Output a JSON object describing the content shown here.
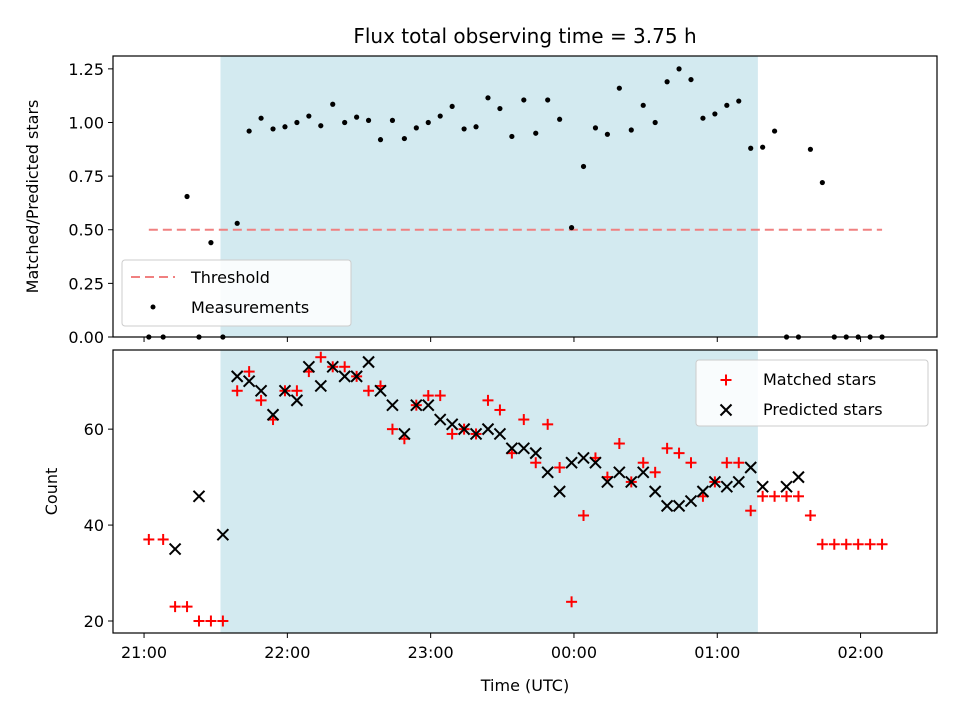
{
  "chart_data": [
    {
      "type": "scatter",
      "title": "Flux total observing time = 3.75 h",
      "ylabel": "Matched/Predicted stars",
      "xlabel": "",
      "ylim": [
        0,
        1.31
      ],
      "yticks": [
        0.0,
        0.25,
        0.5,
        0.75,
        1.0,
        1.25
      ],
      "ytick_labels": [
        "0.00",
        "0.25",
        "0.50",
        "0.75",
        "1.00",
        "1.25"
      ],
      "xticks_minutes": [
        0,
        60,
        120,
        180,
        240,
        300
      ],
      "xlim_minutes": [
        -13,
        332
      ],
      "shaded_span_minutes": [
        32,
        257
      ],
      "shaded_color": "#d3eaf0",
      "threshold": {
        "name": "Threshold",
        "value": 0.5,
        "x_range_minutes": [
          2,
          309
        ],
        "color": "#f08080"
      },
      "series": [
        {
          "name": "Measurements",
          "color": "#000000",
          "x": [
            2,
            8,
            18,
            23,
            28,
            33,
            39,
            44,
            49,
            54,
            59,
            64,
            69,
            74,
            79,
            84,
            89,
            94,
            99,
            104,
            109,
            114,
            119,
            124,
            129,
            134,
            139,
            144,
            149,
            154,
            159,
            164,
            169,
            174,
            179,
            184,
            189,
            194,
            199,
            204,
            209,
            214,
            219,
            224,
            229,
            234,
            239,
            244,
            249,
            254,
            259,
            264,
            269,
            274,
            279,
            284,
            289,
            294,
            299,
            304,
            309
          ],
          "y": [
            0,
            0,
            0.655,
            0,
            0.44,
            0,
            0.53,
            0.96,
            1.02,
            0.97,
            0.98,
            1.0,
            1.03,
            0.985,
            1.085,
            1.0,
            1.025,
            1.01,
            0.92,
            1.01,
            0.925,
            0.975,
            1.0,
            1.03,
            1.075,
            0.97,
            0.98,
            1.115,
            1.065,
            0.935,
            1.105,
            0.95,
            1.105,
            1.015,
            0.51,
            0.795,
            0.975,
            0.945,
            1.16,
            0.965,
            1.08,
            1.0,
            1.19,
            1.25,
            1.2,
            1.02,
            1.04,
            1.08,
            1.1,
            0.88,
            0.885,
            0.96,
            0,
            0,
            0.875,
            0.72,
            0,
            0,
            0,
            0,
            0
          ]
        }
      ],
      "legend": {
        "placement": "lower-left",
        "entries": [
          "Threshold",
          "Measurements"
        ]
      }
    },
    {
      "type": "scatter",
      "title": "",
      "ylabel": "Count",
      "xlabel": "Time (UTC)",
      "ylim": [
        17.5,
        76.5
      ],
      "yticks": [
        20,
        40,
        60
      ],
      "ytick_labels": [
        "20",
        "40",
        "60"
      ],
      "xticks_minutes": [
        0,
        60,
        120,
        180,
        240,
        300
      ],
      "xtick_labels": [
        "21:00",
        "22:00",
        "23:00",
        "00:00",
        "01:00",
        "02:00"
      ],
      "xlim_minutes": [
        -13,
        332
      ],
      "shaded_span_minutes": [
        32,
        257
      ],
      "shaded_color": "#d3eaf0",
      "series": [
        {
          "name": "Matched stars",
          "marker": "plus",
          "color": "#ff0000",
          "x": [
            2,
            8,
            13,
            18,
            23,
            28,
            33,
            39,
            44,
            49,
            54,
            59,
            64,
            69,
            74,
            79,
            84,
            89,
            94,
            99,
            104,
            109,
            114,
            119,
            124,
            129,
            134,
            139,
            144,
            149,
            154,
            159,
            164,
            169,
            174,
            179,
            184,
            189,
            194,
            199,
            204,
            209,
            214,
            219,
            224,
            229,
            234,
            239,
            244,
            249,
            254,
            259,
            264,
            269,
            274,
            279,
            284,
            289,
            294,
            299,
            304,
            309
          ],
          "y": [
            37,
            37,
            23,
            23,
            20,
            20,
            20,
            68,
            72,
            66,
            62,
            68,
            68,
            72,
            75,
            73,
            73,
            71,
            68,
            69,
            60,
            58,
            65,
            67,
            67,
            59,
            60,
            59,
            66,
            64,
            55,
            62,
            53,
            61,
            52,
            24,
            42,
            54,
            50,
            57,
            49,
            53,
            51,
            56,
            55,
            53,
            46,
            49,
            53,
            53,
            43,
            46,
            46,
            46,
            46,
            42,
            36,
            36,
            36,
            36,
            36,
            36
          ]
        },
        {
          "name": "Predicted stars",
          "marker": "x",
          "color": "#000000",
          "x": [
            13,
            23,
            33,
            39,
            44,
            49,
            54,
            59,
            64,
            69,
            74,
            79,
            84,
            89,
            94,
            99,
            104,
            109,
            114,
            119,
            124,
            129,
            134,
            139,
            144,
            149,
            154,
            159,
            164,
            169,
            174,
            179,
            184,
            189,
            194,
            199,
            204,
            209,
            214,
            219,
            224,
            229,
            234,
            239,
            244,
            249,
            254,
            259,
            269,
            274
          ],
          "y": [
            35,
            46,
            38,
            71,
            70,
            68,
            63,
            68,
            66,
            73,
            69,
            73,
            71,
            71,
            74,
            68,
            65,
            59,
            65,
            65,
            62,
            61,
            60,
            59,
            60,
            59,
            56,
            56,
            55,
            51,
            47,
            53,
            54,
            53,
            49,
            51,
            49,
            51,
            47,
            44,
            44,
            45,
            47,
            49,
            48,
            49,
            52,
            48,
            48,
            50
          ]
        }
      ],
      "legend": {
        "placement": "upper-right",
        "entries": [
          "Matched stars",
          "Predicted stars"
        ]
      }
    }
  ]
}
